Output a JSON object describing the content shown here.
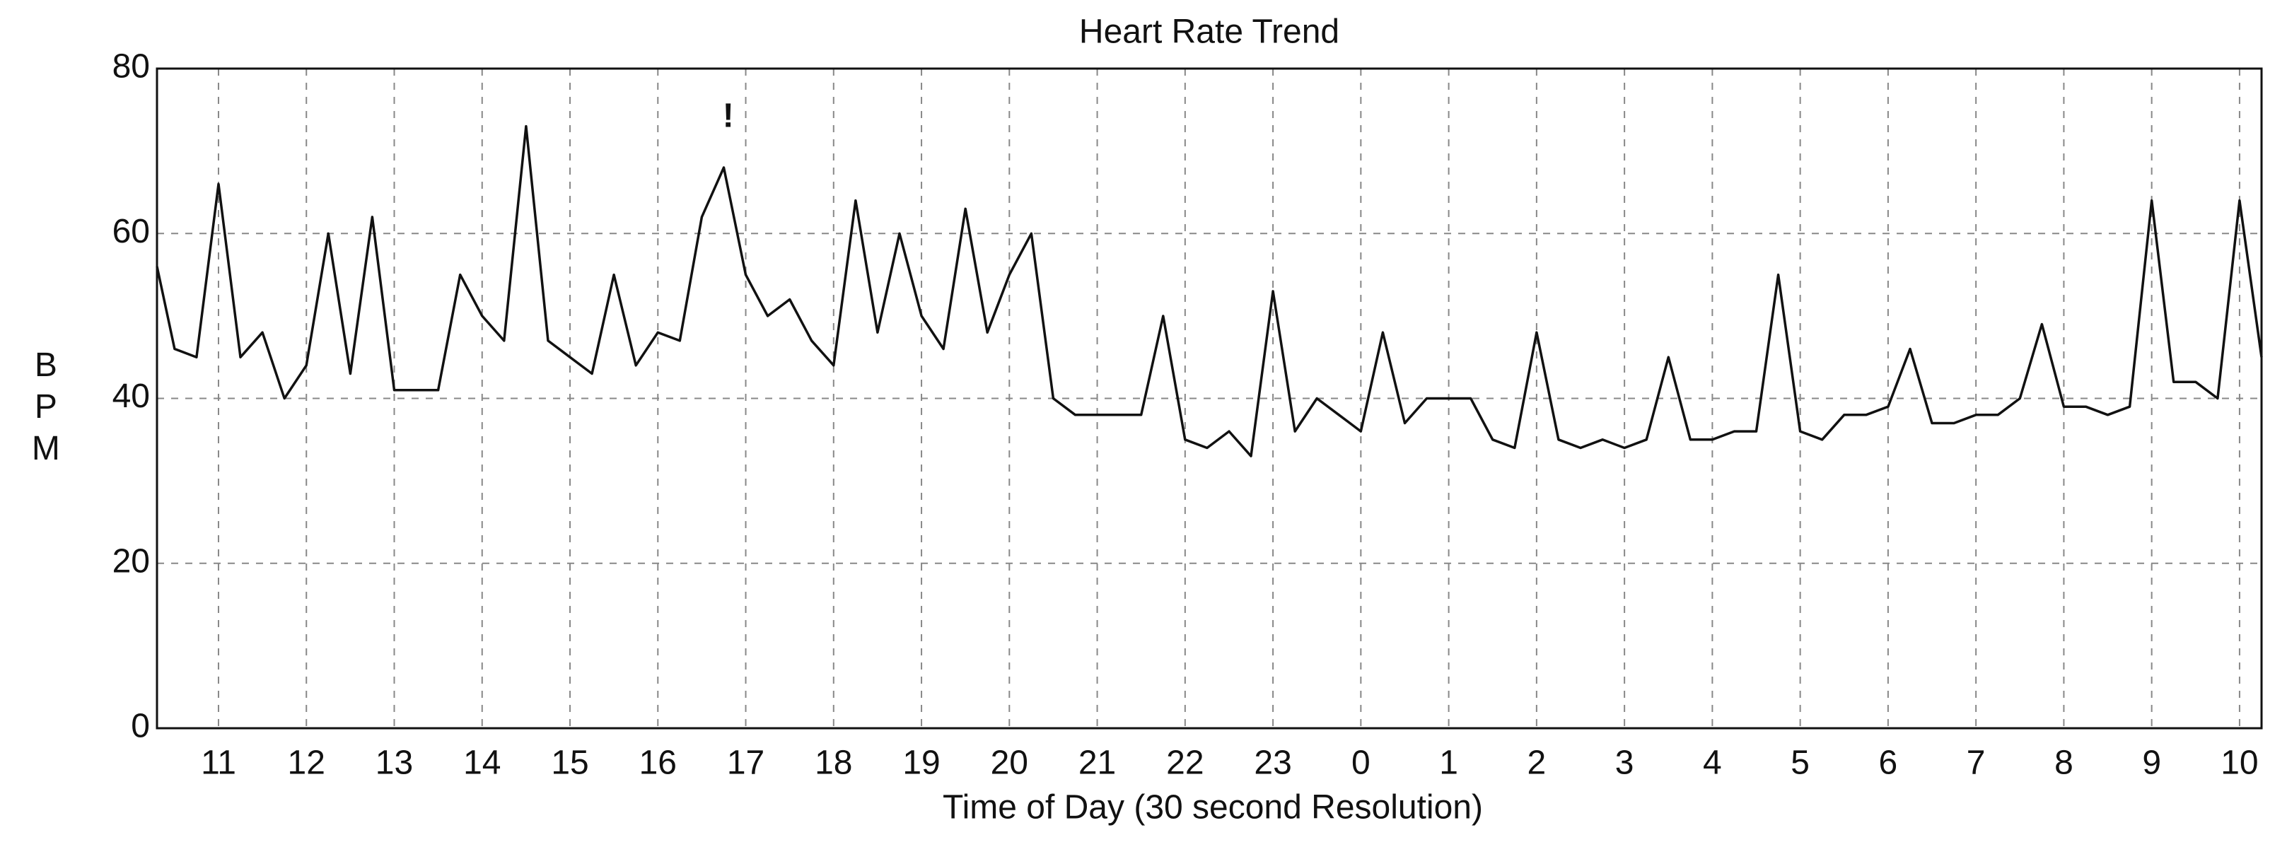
{
  "chart_data": {
    "type": "line",
    "title": "Heart Rate Trend",
    "x_label": "Time of Day (30 second Resolution)",
    "y_label": "BPM",
    "annotations": [
      {
        "text": "!",
        "x": 16.8,
        "y": 74
      }
    ],
    "x": [
      10.3,
      10.5,
      10.75,
      11,
      11.25,
      11.5,
      11.75,
      12,
      12.25,
      12.5,
      12.75,
      13,
      13.25,
      13.5,
      13.75,
      14,
      14.25,
      14.5,
      14.75,
      15,
      15.25,
      15.5,
      15.75,
      16,
      16.25,
      16.5,
      16.75,
      17,
      17.25,
      17.5,
      17.75,
      18,
      18.25,
      18.5,
      18.75,
      19,
      19.25,
      19.5,
      19.75,
      20,
      20.25,
      20.5,
      20.75,
      21,
      21.25,
      21.5,
      21.75,
      22,
      22.25,
      22.5,
      22.75,
      23,
      23.25,
      23.5,
      23.75,
      24,
      24.25,
      24.5,
      24.75,
      25,
      25.25,
      25.5,
      25.75,
      26,
      26.25,
      26.5,
      26.75,
      27,
      27.25,
      27.5,
      27.75,
      28,
      28.25,
      28.5,
      28.75,
      29,
      29.25,
      29.5,
      29.75,
      30,
      30.25,
      30.5,
      30.75,
      31,
      31.25,
      31.5,
      31.75,
      32,
      32.25,
      32.5,
      32.75,
      33,
      33.25,
      33.5,
      33.75,
      34,
      34.25
    ],
    "series": [
      {
        "name": "Heart Rate",
        "color": "#111111",
        "values": [
          56,
          46,
          45,
          66,
          45,
          48,
          40,
          44,
          60,
          43,
          62,
          41,
          41,
          41,
          55,
          50,
          47,
          73,
          47,
          45,
          43,
          55,
          44,
          48,
          47,
          62,
          68,
          55,
          50,
          52,
          47,
          44,
          64,
          48,
          60,
          50,
          46,
          63,
          48,
          55,
          60,
          40,
          38,
          38,
          38,
          38,
          50,
          35,
          34,
          36,
          33,
          53,
          36,
          40,
          38,
          36,
          48,
          37,
          40,
          40,
          40,
          35,
          34,
          48,
          35,
          34,
          35,
          34,
          35,
          45,
          35,
          35,
          36,
          36,
          55,
          36,
          35,
          38,
          38,
          39,
          46,
          37,
          37,
          38,
          38,
          40,
          49,
          39,
          39,
          38,
          39,
          64,
          42,
          42,
          40,
          64,
          45
        ]
      }
    ],
    "xlim": [
      10.3,
      34.25
    ],
    "ylim": [
      0,
      80
    ],
    "xticks": [
      11,
      12,
      13,
      14,
      15,
      16,
      17,
      18,
      19,
      20,
      21,
      22,
      23,
      {
        "value": 24,
        "label": "0"
      },
      {
        "value": 25,
        "label": "1"
      },
      {
        "value": 26,
        "label": "2"
      },
      {
        "value": 27,
        "label": "3"
      },
      {
        "value": 28,
        "label": "4"
      },
      {
        "value": 29,
        "label": "5"
      },
      {
        "value": 30,
        "label": "6"
      },
      {
        "value": 31,
        "label": "7"
      },
      {
        "value": 32,
        "label": "8"
      },
      {
        "value": 33,
        "label": "9"
      },
      {
        "value": 34,
        "label": "10"
      }
    ],
    "yticks": [
      0,
      20,
      40,
      60,
      80
    ],
    "grid": true
  }
}
